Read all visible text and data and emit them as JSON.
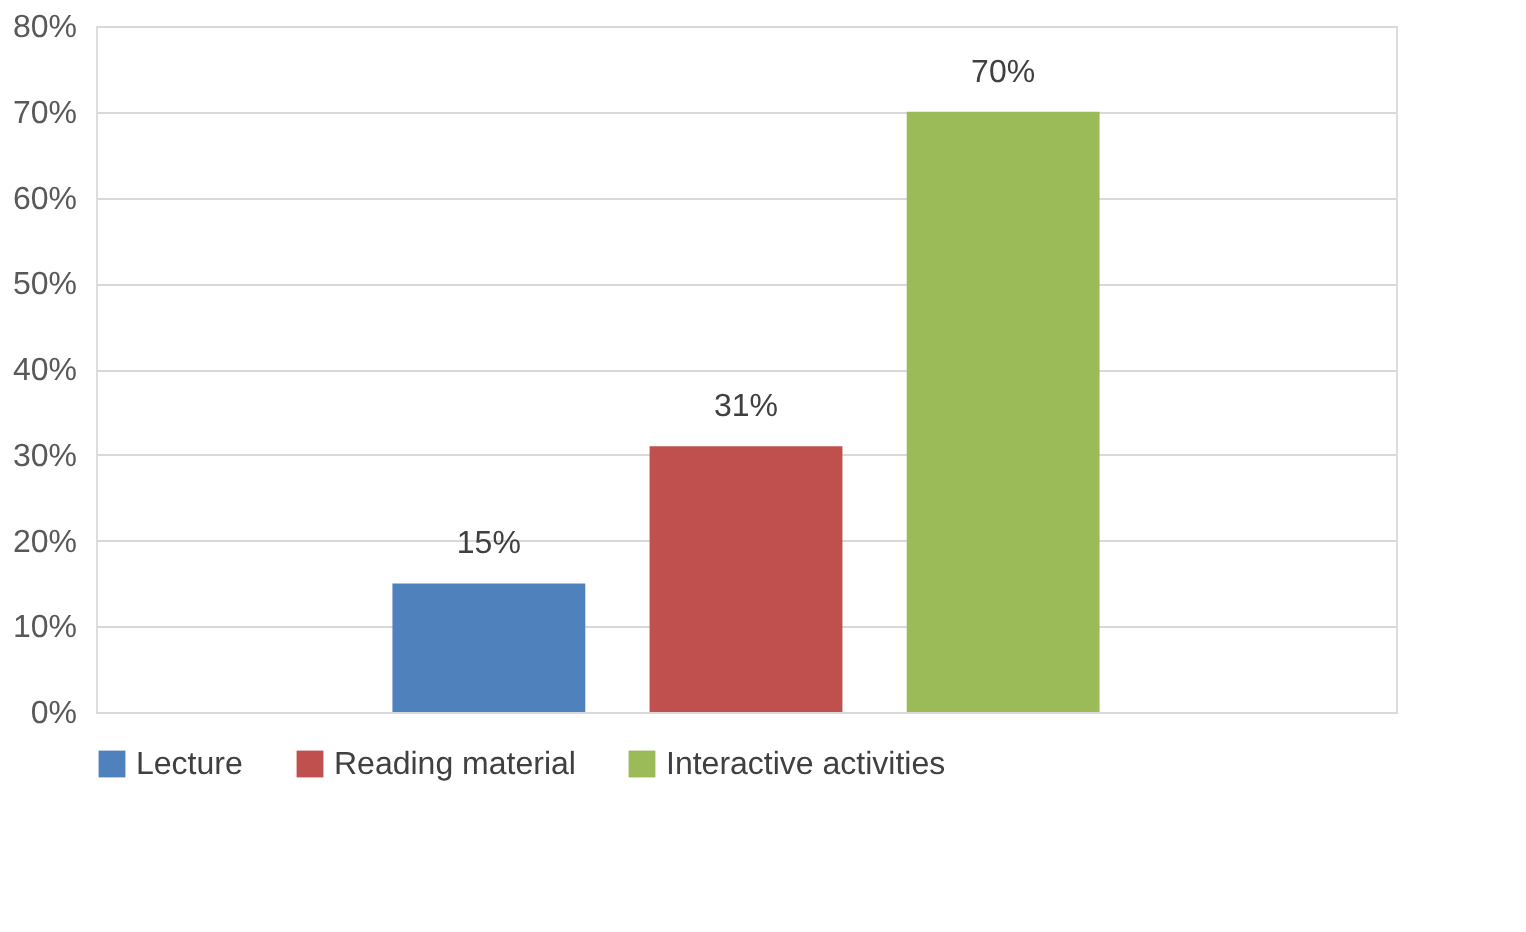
{
  "chart_data": {
    "type": "bar",
    "categories": [
      null
    ],
    "series": [
      {
        "name": "Lecture",
        "color": "#4f81bd",
        "values": [
          15
        ],
        "value_labels": [
          "15%"
        ]
      },
      {
        "name": "Reading material",
        "color": "#c0504d",
        "values": [
          31
        ],
        "value_labels": [
          "31%"
        ]
      },
      {
        "name": "Interactive activities",
        "color": "#9bbb59",
        "values": [
          70
        ],
        "value_labels": [
          "70%"
        ]
      }
    ],
    "ylim": [
      0,
      80
    ],
    "yticks": [
      {
        "value": 0,
        "label": "0%"
      },
      {
        "value": 10,
        "label": "10%"
      },
      {
        "value": 20,
        "label": "20%"
      },
      {
        "value": 30,
        "label": "30%"
      },
      {
        "value": 40,
        "label": "40%"
      },
      {
        "value": 50,
        "label": "50%"
      },
      {
        "value": 60,
        "label": "60%"
      },
      {
        "value": 70,
        "label": "70%"
      },
      {
        "value": 80,
        "label": "80%"
      }
    ],
    "grid": "y",
    "legend": "bottom",
    "tick_labels": "y"
  }
}
